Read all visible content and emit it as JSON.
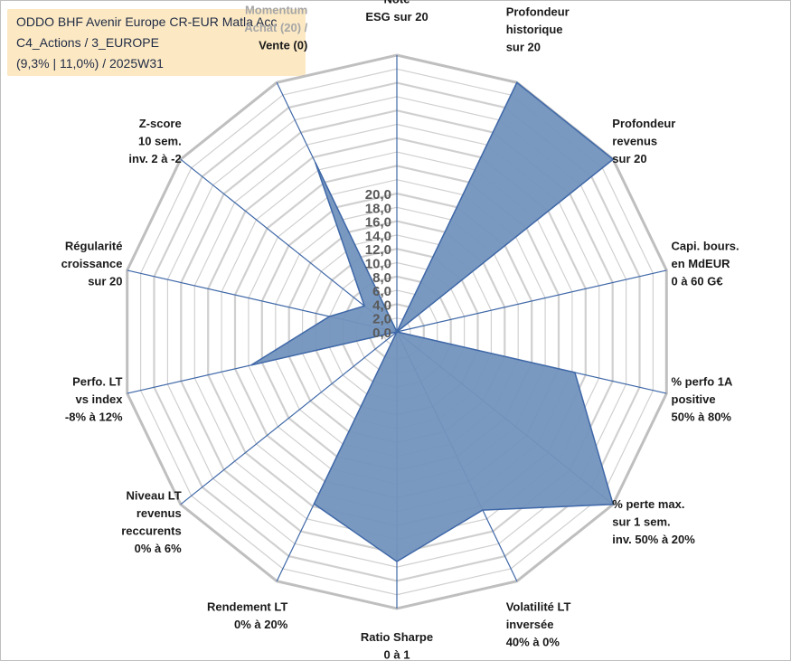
{
  "title_lines": [
    "ODDO BHF Avenir Europe CR-EUR Matla Acc",
    "C4_Actions / 3_EUROPE",
    "(9,3% | 11,0%) / 2025W31"
  ],
  "chart_data": {
    "type": "radar",
    "rlim": [
      0,
      20
    ],
    "r_ticks": [
      "0,0",
      "2,0",
      "4,0",
      "6,0",
      "8,0",
      "10,0",
      "12,0",
      "14,0",
      "16,0",
      "18,0",
      "20,0"
    ],
    "grid": true,
    "axes": [
      {
        "label": [
          "Note",
          "ESG sur 20"
        ],
        "value": 0,
        "label_color": "#1a1a1a"
      },
      {
        "label": [
          "Profondeur",
          "historique",
          "sur 20"
        ],
        "value": 20,
        "label_color": "#1a1a1a"
      },
      {
        "label": [
          "Profondeur",
          "revenus",
          "sur 20"
        ],
        "value": 20,
        "label_color": "#1a1a1a"
      },
      {
        "label": [
          "Capi. bours.",
          "en MdEUR",
          "0 à 60 G€"
        ],
        "value": 0,
        "label_color": "#1a1a1a"
      },
      {
        "label": [
          "% perfo 1A",
          "positive",
          "50% à 80%"
        ],
        "value": 13.2,
        "label_color": "#1a1a1a"
      },
      {
        "label": [
          "% perte max.",
          "sur 1 sem.",
          "inv. 50% à 20%"
        ],
        "value": 20,
        "label_color": "#1a1a1a"
      },
      {
        "label": [
          "Volatilité LT",
          "inversée",
          "40% à 0%"
        ],
        "value": 14.3,
        "label_color": "#1a1a1a"
      },
      {
        "label": [
          "Ratio Sharpe",
          "0 à 1"
        ],
        "value": 16.6,
        "label_color": "#1a1a1a"
      },
      {
        "label": [
          "Rendement LT",
          "0% à 20%"
        ],
        "value": 13.8,
        "label_color": "#1a1a1a"
      },
      {
        "label": [
          "Niveau LT",
          "revenus",
          "reccurents",
          "0% à 6%"
        ],
        "value": 0,
        "label_color": "#1a1a1a"
      },
      {
        "label": [
          "Perfo. LT",
          "vs index",
          "-8% à 12%"
        ],
        "value": 10.8,
        "label_color": "#1a1a1a"
      },
      {
        "label": [
          "Régularité",
          "croissance",
          "sur 20"
        ],
        "value": 5.0,
        "label_color": "#1a1a1a"
      },
      {
        "label": [
          "Z-score",
          "10 sem.",
          "inv. 2 à -2"
        ],
        "value": 3.0,
        "label_color": "#1a1a1a"
      },
      {
        "label": [
          "Momentum",
          "Achat (20) /",
          "Vente (0)"
        ],
        "value": 13.6,
        "label_color": "#a6a6a6"
      }
    ],
    "series_fill": "#7393bd",
    "series_stroke": "#3f68a8",
    "spoke_color": "#3f68a8",
    "grid_color": "#d0d0d0",
    "outer_ring_color": "#bfbfbf",
    "title_box_color": "#fce9c4"
  }
}
